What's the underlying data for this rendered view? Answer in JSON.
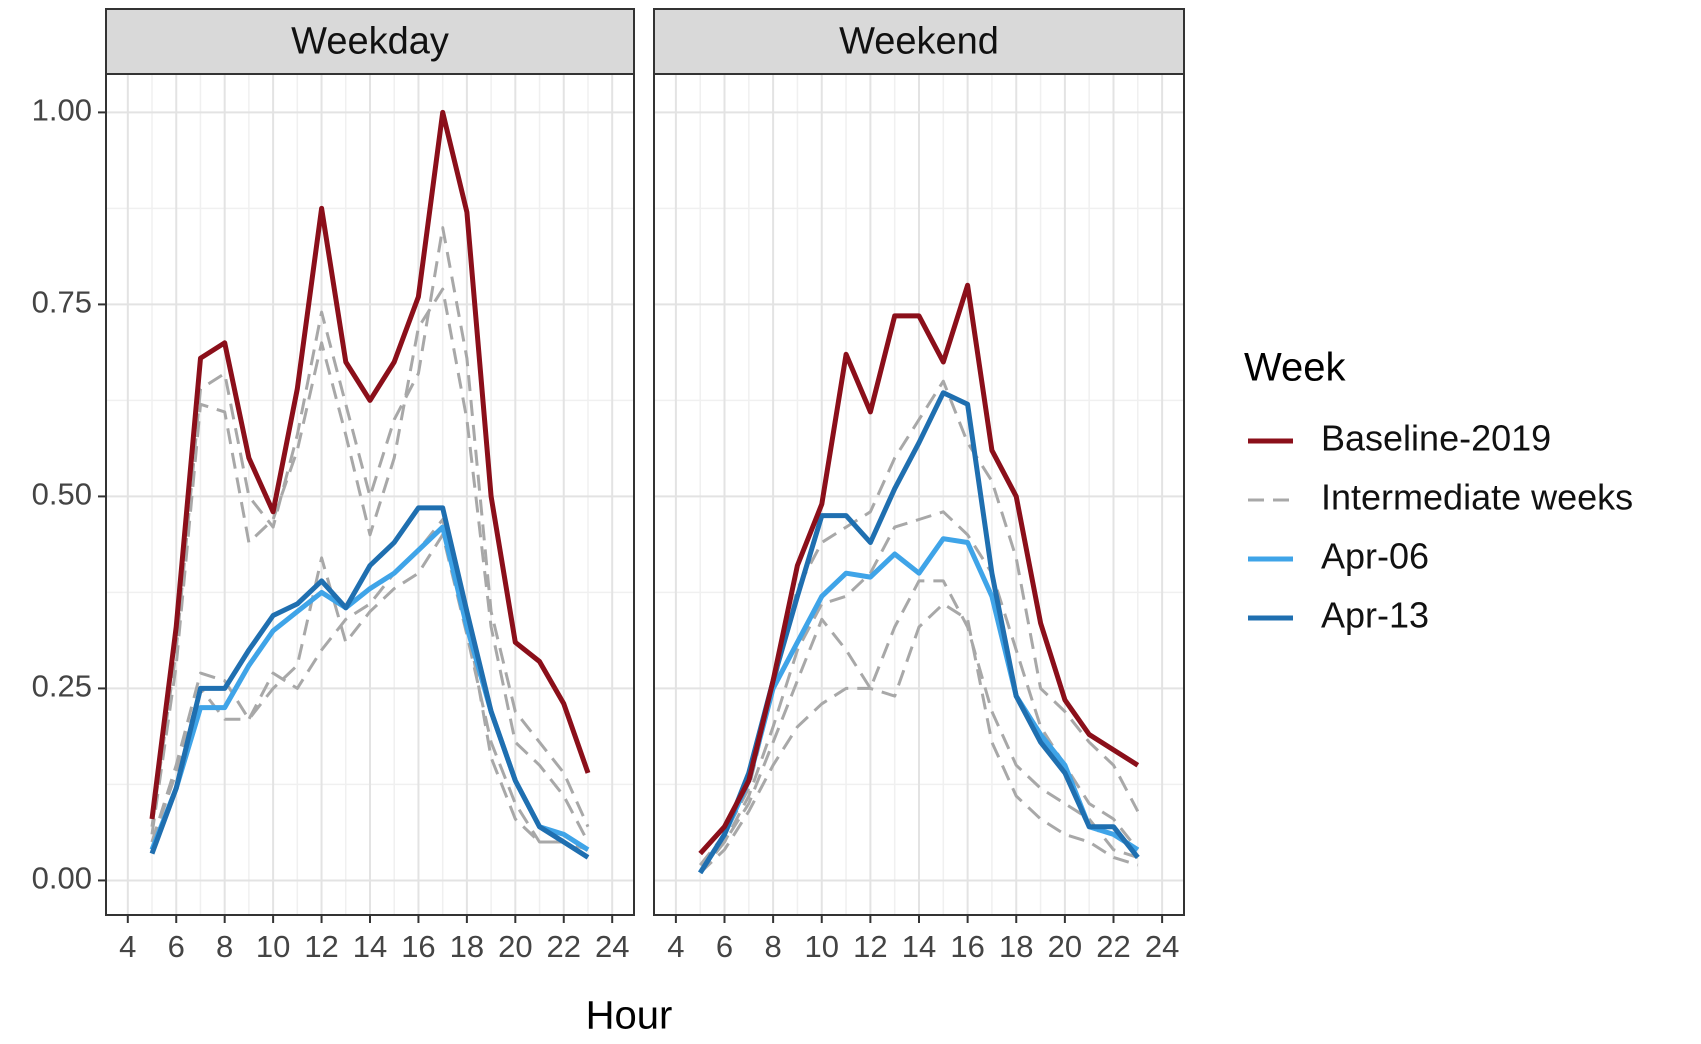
{
  "figure": {
    "xlabel": "Hour"
  },
  "legend": {
    "title": "Week",
    "items": [
      {
        "name": "Baseline-2019",
        "color": "#8b0f1a",
        "dashed": false
      },
      {
        "name": "Intermediate weeks",
        "color": "#a8a8a8",
        "dashed": true
      },
      {
        "name": "Apr-06",
        "color": "#3fa4e8",
        "dashed": false
      },
      {
        "name": "Apr-13",
        "color": "#1f6fb0",
        "dashed": false
      }
    ]
  },
  "chart_data": [
    {
      "type": "line",
      "title": "Weekday",
      "x": [
        5,
        6,
        7,
        8,
        9,
        10,
        11,
        12,
        13,
        14,
        15,
        16,
        17,
        18,
        19,
        20,
        21,
        22,
        23
      ],
      "xlim": [
        3.1,
        24.9
      ],
      "xticks": [
        4,
        6,
        8,
        10,
        12,
        14,
        16,
        18,
        20,
        22,
        24
      ],
      "ylim": [
        -0.045,
        1.05
      ],
      "yticks": [
        {
          "value": 0,
          "label": "0.00"
        },
        0.25,
        {
          "value": 0.5,
          "label": "0.50"
        },
        0.75,
        {
          "value": 1,
          "label": "1.00"
        }
      ],
      "grid": true,
      "series": [
        {
          "values": [
            0.08,
            0.33,
            0.68,
            0.7,
            0.55,
            0.48,
            0.64,
            0.875,
            0.675,
            0.625,
            0.675,
            0.76,
            1.0,
            0.87,
            0.5,
            0.31,
            0.285,
            0.23,
            0.14
          ]
        },
        {
          "lines": [
            [
              0.07,
              0.3,
              0.64,
              0.66,
              0.5,
              0.46,
              0.58,
              0.74,
              0.62,
              0.5,
              0.6,
              0.66,
              0.85,
              0.68,
              0.35,
              0.22,
              0.18,
              0.14,
              0.07
            ],
            [
              0.06,
              0.28,
              0.62,
              0.61,
              0.44,
              0.47,
              0.56,
              0.7,
              0.58,
              0.45,
              0.55,
              0.72,
              0.77,
              0.6,
              0.33,
              0.18,
              0.15,
              0.11,
              0.05
            ],
            [
              0.05,
              0.15,
              0.27,
              0.26,
              0.21,
              0.25,
              0.28,
              0.42,
              0.31,
              0.35,
              0.38,
              0.4,
              0.45,
              0.32,
              0.18,
              0.1,
              0.05,
              0.05,
              0.04
            ],
            [
              0.05,
              0.14,
              0.25,
              0.21,
              0.21,
              0.27,
              0.25,
              0.3,
              0.34,
              0.36,
              0.4,
              0.43,
              0.47,
              0.34,
              0.16,
              0.08,
              0.05,
              0.05,
              0.03
            ]
          ]
        },
        {
          "values": [
            0.04,
            0.12,
            0.225,
            0.225,
            0.28,
            0.325,
            0.35,
            0.375,
            0.355,
            0.38,
            0.4,
            0.43,
            0.46,
            0.33,
            0.22,
            0.13,
            0.07,
            0.06,
            0.04
          ]
        },
        {
          "values": [
            0.035,
            0.12,
            0.25,
            0.25,
            0.3,
            0.345,
            0.36,
            0.39,
            0.355,
            0.41,
            0.44,
            0.485,
            0.485,
            0.35,
            0.22,
            0.13,
            0.07,
            0.05,
            0.03
          ]
        }
      ]
    },
    {
      "type": "line",
      "title": "Weekend",
      "x": [
        5,
        6,
        7,
        8,
        9,
        10,
        11,
        12,
        13,
        14,
        15,
        16,
        17,
        18,
        19,
        20,
        21,
        22,
        23
      ],
      "xlim": [
        3.1,
        24.9
      ],
      "xticks": [
        4,
        6,
        8,
        10,
        12,
        14,
        16,
        18,
        20,
        22,
        24
      ],
      "ylim": [
        -0.045,
        1.05
      ],
      "yticks": [
        0,
        0.25,
        0.5,
        0.75,
        1
      ],
      "grid": true,
      "series": [
        {
          "values": [
            0.035,
            0.07,
            0.13,
            0.26,
            0.41,
            0.49,
            0.685,
            0.61,
            0.735,
            0.735,
            0.675,
            0.775,
            0.56,
            0.5,
            0.335,
            0.235,
            0.19,
            0.17,
            0.15
          ]
        },
        {
          "lines": [
            [
              0.02,
              0.06,
              0.12,
              0.25,
              0.38,
              0.44,
              0.46,
              0.48,
              0.55,
              0.6,
              0.65,
              0.57,
              0.52,
              0.42,
              0.25,
              0.22,
              0.18,
              0.15,
              0.09
            ],
            [
              0.02,
              0.05,
              0.11,
              0.2,
              0.3,
              0.36,
              0.37,
              0.4,
              0.46,
              0.47,
              0.48,
              0.45,
              0.4,
              0.3,
              0.2,
              0.15,
              0.1,
              0.08,
              0.04
            ],
            [
              0.01,
              0.05,
              0.1,
              0.18,
              0.26,
              0.34,
              0.3,
              0.25,
              0.33,
              0.39,
              0.39,
              0.33,
              0.22,
              0.15,
              0.12,
              0.1,
              0.08,
              0.04,
              0.03
            ],
            [
              0.01,
              0.04,
              0.09,
              0.15,
              0.2,
              0.23,
              0.25,
              0.25,
              0.24,
              0.33,
              0.36,
              0.34,
              0.18,
              0.11,
              0.08,
              0.06,
              0.05,
              0.03,
              0.02
            ]
          ]
        },
        {
          "values": [
            0.01,
            0.06,
            0.13,
            0.25,
            0.31,
            0.37,
            0.4,
            0.395,
            0.425,
            0.4,
            0.445,
            0.44,
            0.37,
            0.24,
            0.19,
            0.15,
            0.07,
            0.06,
            0.04
          ]
        },
        {
          "values": [
            0.01,
            0.06,
            0.14,
            0.26,
            0.37,
            0.475,
            0.475,
            0.44,
            0.51,
            0.57,
            0.635,
            0.62,
            0.4,
            0.24,
            0.18,
            0.14,
            0.07,
            0.07,
            0.03
          ]
        }
      ]
    }
  ]
}
